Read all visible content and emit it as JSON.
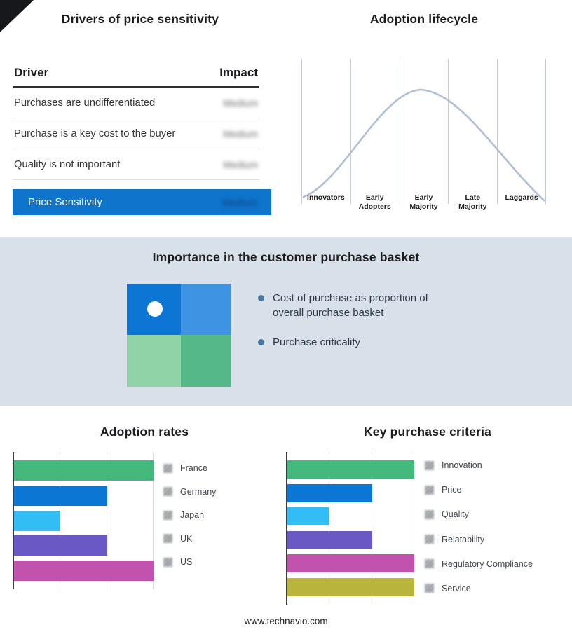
{
  "titles": {
    "drivers": "Drivers of price sensitivity",
    "basket": "Importance in the customer purchase basket"
  },
  "drivers_table": {
    "columns": {
      "driver": "Driver",
      "impact": "Impact"
    },
    "rows": [
      {
        "driver": "Purchases are undifferentiated",
        "impact": "Medium",
        "impact_obscured": true
      },
      {
        "driver": "Purchase is a key cost to the buyer",
        "impact": "Medium",
        "impact_obscured": true
      },
      {
        "driver": "Quality is not important",
        "impact": "Medium",
        "impact_obscured": true
      }
    ],
    "highlight": {
      "driver": "Price Sensitivity",
      "impact": "Medium",
      "impact_obscured": true,
      "row_color": "#0e74cc"
    }
  },
  "basket": {
    "bullets": [
      "Cost of purchase as proportion of overall purchase basket",
      "Purchase criticality"
    ],
    "quadrant_colors": [
      "#0d76d4",
      "#3e93e3",
      "#8fd3a7",
      "#55b888"
    ]
  },
  "footer": {
    "site": "www.technavio.com"
  },
  "chart_data": [
    {
      "type": "line",
      "title": "Adoption lifecycle",
      "curve": "bell-curve-normal-distribution",
      "categories": [
        "Innovators",
        "Early Adopters",
        "Early Majority",
        "Late Majority",
        "Laggards"
      ],
      "line_color": "#afc0d4",
      "grid": true,
      "legend_position": "none"
    },
    {
      "type": "bar",
      "title": "Adoption rates",
      "orientation": "horizontal",
      "categories": [
        "France",
        "Germany",
        "Japan",
        "UK",
        "US"
      ],
      "values": [
        3,
        2,
        1,
        2,
        3
      ],
      "xlim": [
        0,
        3
      ],
      "grid": true,
      "bar_colors": [
        "#45b87e",
        "#0b76d4",
        "#33bdf5",
        "#6a59c5",
        "#c153ae"
      ],
      "legend_position": "right",
      "legend_swatches_obscured": true
    },
    {
      "type": "bar",
      "title": "Key purchase criteria",
      "orientation": "horizontal",
      "categories": [
        "Innovation",
        "Price",
        "Quality",
        "Relatability",
        "Regulatory Compliance",
        "Service"
      ],
      "values": [
        3,
        2,
        1,
        2,
        3,
        3
      ],
      "xlim": [
        0,
        3
      ],
      "grid": true,
      "bar_colors": [
        "#45b87e",
        "#0b76d4",
        "#33bdf5",
        "#6a59c5",
        "#c153ae",
        "#b9b43c"
      ],
      "legend_position": "right",
      "legend_swatches_obscured": true
    }
  ]
}
